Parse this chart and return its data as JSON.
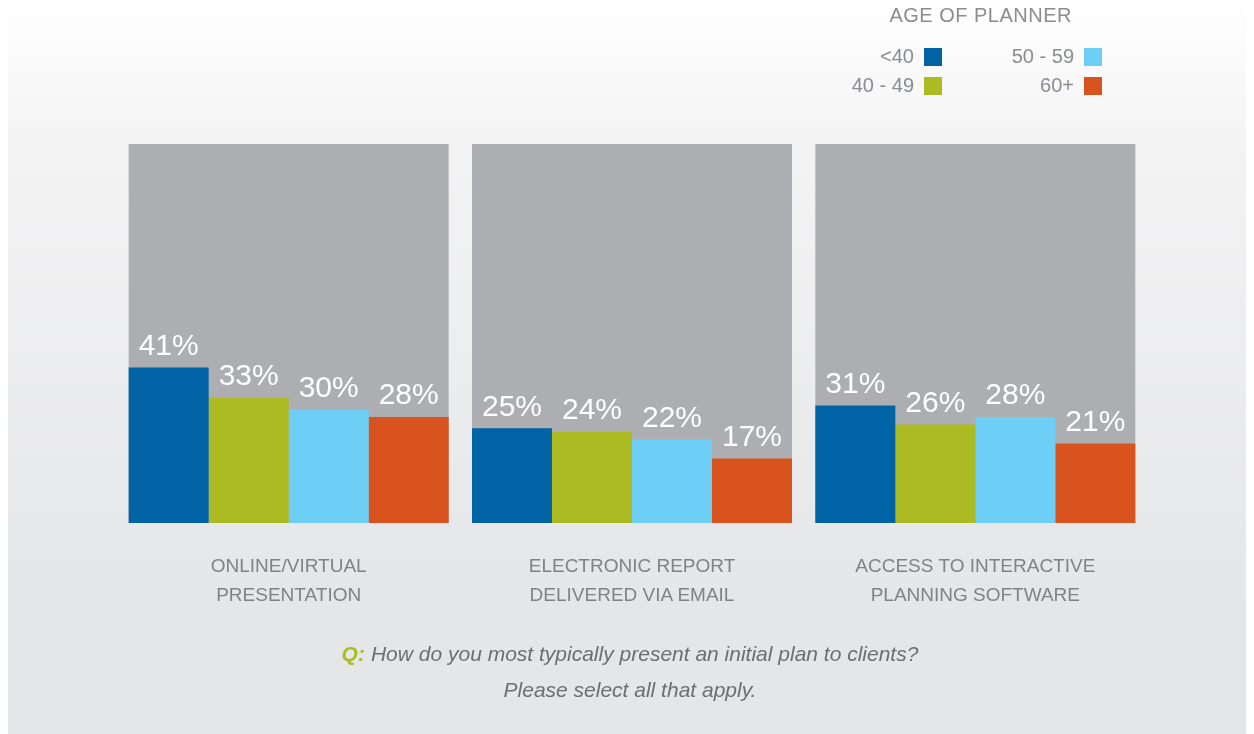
{
  "chart_data": {
    "type": "bar",
    "legend_title": "AGE OF PLANNER",
    "legend": "top right",
    "categories": [
      "ONLINE/VIRTUAL PRESENTATION",
      "ELECTRONIC REPORT DELIVERED VIA EMAIL",
      "ACCESS TO INTERACTIVE PLANNING SOFTWARE"
    ],
    "ylim": [
      0,
      100
    ],
    "tick_labels": "x",
    "grid": false,
    "series": [
      {
        "color": "#adaeb2",
        "values": [
          100,
          100,
          100
        ]
      },
      {
        "name": "<40",
        "color": "#0063a6",
        "values": [
          41,
          25,
          31
        ],
        "value_labels": [
          "41%",
          "25%",
          "31%"
        ]
      },
      {
        "name": "40 - 49",
        "color": "#acbb22",
        "values": [
          33,
          24,
          26
        ],
        "value_labels": [
          "33%",
          "24%",
          "26%"
        ]
      },
      {
        "name": "50 - 59",
        "color": "#6dcff6",
        "values": [
          30,
          22,
          28
        ],
        "value_labels": [
          "30%",
          "22%",
          "28%"
        ]
      },
      {
        "name": "60+",
        "color": "#d9531e",
        "values": [
          28,
          17,
          21
        ],
        "value_labels": [
          "28%",
          "17%",
          "21%"
        ]
      }
    ],
    "annotations": [
      "Q:",
      "How do you most typically present an initial plan to clients?",
      "Please select all that apply."
    ]
  }
}
